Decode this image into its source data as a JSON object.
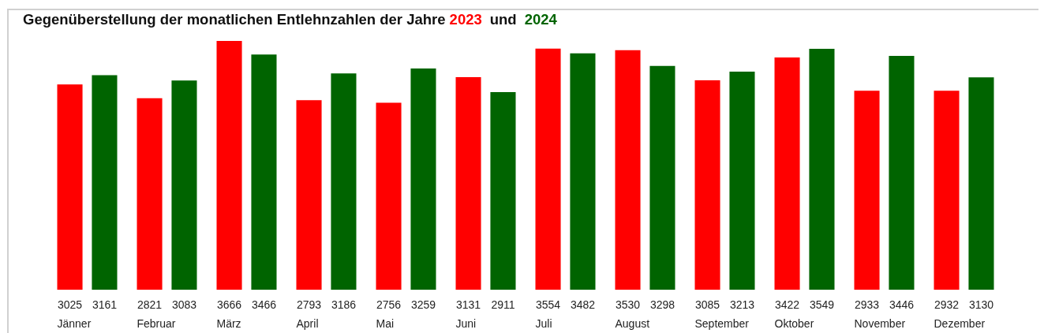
{
  "chart_data": {
    "type": "bar",
    "title": "Gegenüberstellung der monatlichen Entlehnzahlen der Jahre",
    "annotations": [
      "und"
    ],
    "categories": [
      "Jänner",
      "Februar",
      "März",
      "April",
      "Mai",
      "Juni",
      "Juli",
      "August",
      "September",
      "Oktober",
      "November",
      "Dezember"
    ],
    "series": [
      {
        "name": "2023",
        "color": "#ff0000",
        "values": [
          3025,
          2821,
          3666,
          2793,
          2756,
          3131,
          3554,
          3530,
          3085,
          3422,
          2933,
          2932
        ]
      },
      {
        "name": "2024",
        "color": "#006400",
        "values": [
          3161,
          3083,
          3466,
          3186,
          3259,
          2911,
          3482,
          3298,
          3213,
          3549,
          3446,
          3130
        ]
      }
    ],
    "data_labels": true
  }
}
